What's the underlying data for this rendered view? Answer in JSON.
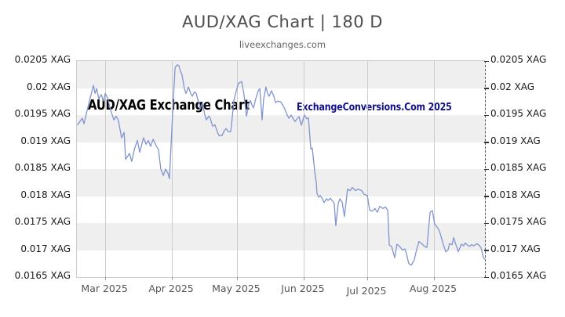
{
  "header": {
    "title": "AUD/XAG Chart | 180 D",
    "subtitle": "liveexchanges.com"
  },
  "watermarks": {
    "left_text": "AUD/XAG Exchange Chart",
    "left_color": "#000000",
    "right_text": "ExchangeConversions.Com 2025",
    "right_color": "#10108a"
  },
  "chart_data": {
    "type": "line",
    "title": "AUD/XAG Chart | 180 D",
    "pair": "AUD/XAG",
    "period": "180 D",
    "ylim": [
      0.0165,
      0.0205
    ],
    "xlim_days": [
      0,
      180
    ],
    "grid": "vertical-month-lines with alternating horizontal bands",
    "legend_position": "none",
    "band_colors": [
      "#efefef",
      "#ffffff"
    ],
    "line_color": "#8094d0",
    "grid_color": "#cccccc",
    "axis_dash_color": "#555555",
    "y_ticks": [
      {
        "value": 0.0205,
        "label": "0.0205 XAG"
      },
      {
        "value": 0.02,
        "label": "0.02 XAG"
      },
      {
        "value": 0.0195,
        "label": "0.0195 XAG"
      },
      {
        "value": 0.019,
        "label": "0.019 XAG"
      },
      {
        "value": 0.0185,
        "label": "0.0185 XAG"
      },
      {
        "value": 0.018,
        "label": "0.018 XAG"
      },
      {
        "value": 0.0175,
        "label": "0.0175 XAG"
      },
      {
        "value": 0.017,
        "label": "0.017 XAG"
      },
      {
        "value": 0.0165,
        "label": "0.0165 XAG"
      }
    ],
    "x_months": [
      {
        "label": "Mar 2025",
        "day": 12.5,
        "dy": 0
      },
      {
        "label": "Apr 2025",
        "day": 41.9,
        "dy": 0
      },
      {
        "label": "May 2025",
        "day": 70.6,
        "dy": 0
      },
      {
        "label": "Jun 2025",
        "day": 100.0,
        "dy": 0
      },
      {
        "label": "Jul 2025",
        "day": 128.1,
        "dy": 3
      },
      {
        "label": "Aug 2025",
        "day": 157.5,
        "dy": 0
      }
    ],
    "series": [
      {
        "name": "AUD/XAG",
        "points": [
          [
            0.3,
            0.01932
          ],
          [
            2.4,
            0.01944
          ],
          [
            3.1,
            0.01934
          ],
          [
            5.5,
            0.01976
          ],
          [
            7.3,
            0.02005
          ],
          [
            8.0,
            0.0199
          ],
          [
            8.7,
            0.01999
          ],
          [
            9.7,
            0.0198
          ],
          [
            10.7,
            0.01988
          ],
          [
            11.8,
            0.01976
          ],
          [
            12.5,
            0.0199
          ],
          [
            13.5,
            0.01982
          ],
          [
            14.9,
            0.01959
          ],
          [
            16.3,
            0.01941
          ],
          [
            17.3,
            0.01948
          ],
          [
            18.3,
            0.0194
          ],
          [
            19.7,
            0.01908
          ],
          [
            20.8,
            0.01918
          ],
          [
            21.5,
            0.01868
          ],
          [
            23.2,
            0.01879
          ],
          [
            24.2,
            0.01864
          ],
          [
            25.3,
            0.01886
          ],
          [
            26.7,
            0.01903
          ],
          [
            27.7,
            0.01881
          ],
          [
            29.4,
            0.01908
          ],
          [
            30.5,
            0.01896
          ],
          [
            31.5,
            0.01903
          ],
          [
            32.5,
            0.01892
          ],
          [
            33.6,
            0.01905
          ],
          [
            35.0,
            0.01893
          ],
          [
            36.0,
            0.01886
          ],
          [
            37.0,
            0.0185
          ],
          [
            38.1,
            0.01838
          ],
          [
            39.1,
            0.0185
          ],
          [
            40.2,
            0.01842
          ],
          [
            40.8,
            0.01832
          ],
          [
            42.2,
            0.0195
          ],
          [
            43.3,
            0.02038
          ],
          [
            44.3,
            0.02043
          ],
          [
            45.0,
            0.02041
          ],
          [
            45.7,
            0.02031
          ],
          [
            46.4,
            0.02024
          ],
          [
            47.4,
            0.01999
          ],
          [
            48.1,
            0.0199
          ],
          [
            49.2,
            0.02002
          ],
          [
            50.2,
            0.0199
          ],
          [
            50.9,
            0.01985
          ],
          [
            51.9,
            0.01993
          ],
          [
            52.6,
            0.0199
          ],
          [
            53.7,
            0.01973
          ],
          [
            54.3,
            0.01961
          ],
          [
            55.4,
            0.01973
          ],
          [
            56.4,
            0.01951
          ],
          [
            57.1,
            0.01941
          ],
          [
            58.2,
            0.01948
          ],
          [
            58.8,
            0.01944
          ],
          [
            59.9,
            0.01929
          ],
          [
            60.9,
            0.01932
          ],
          [
            62.0,
            0.01918
          ],
          [
            62.7,
            0.01912
          ],
          [
            64.0,
            0.01912
          ],
          [
            65.1,
            0.01922
          ],
          [
            65.8,
            0.01925
          ],
          [
            66.8,
            0.01919
          ],
          [
            67.8,
            0.01919
          ],
          [
            68.5,
            0.01944
          ],
          [
            69.2,
            0.01976
          ],
          [
            70.3,
            0.01995
          ],
          [
            71.3,
            0.02009
          ],
          [
            72.7,
            0.02012
          ],
          [
            73.7,
            0.01988
          ],
          [
            74.8,
            0.01948
          ],
          [
            75.8,
            0.0197
          ],
          [
            76.5,
            0.01977
          ],
          [
            77.2,
            0.01969
          ],
          [
            77.9,
            0.01963
          ],
          [
            78.9,
            0.0198
          ],
          [
            80.0,
            0.01995
          ],
          [
            80.7,
            0.01999
          ],
          [
            81.7,
            0.01941
          ],
          [
            82.4,
            0.0198
          ],
          [
            83.4,
            0.02002
          ],
          [
            84.1,
            0.0199
          ],
          [
            84.8,
            0.01985
          ],
          [
            85.8,
            0.01995
          ],
          [
            86.9,
            0.01985
          ],
          [
            87.6,
            0.01973
          ],
          [
            88.6,
            0.01976
          ],
          [
            90.0,
            0.01974
          ],
          [
            91.0,
            0.01967
          ],
          [
            91.7,
            0.01961
          ],
          [
            92.8,
            0.0195
          ],
          [
            93.5,
            0.01944
          ],
          [
            94.5,
            0.0195
          ],
          [
            95.2,
            0.01945
          ],
          [
            96.2,
            0.01938
          ],
          [
            97.3,
            0.01944
          ],
          [
            98.0,
            0.01947
          ],
          [
            99.0,
            0.01931
          ],
          [
            100.4,
            0.0195
          ],
          [
            101.4,
            0.01943
          ],
          [
            102.1,
            0.01945
          ],
          [
            103.2,
            0.01887
          ],
          [
            103.8,
            0.01889
          ],
          [
            104.2,
            0.01875
          ],
          [
            104.9,
            0.01846
          ],
          [
            105.6,
            0.01824
          ],
          [
            105.9,
            0.01805
          ],
          [
            106.6,
            0.01798
          ],
          [
            107.3,
            0.01801
          ],
          [
            108.3,
            0.01795
          ],
          [
            109.0,
            0.01788
          ],
          [
            110.1,
            0.01795
          ],
          [
            110.8,
            0.01792
          ],
          [
            111.8,
            0.01796
          ],
          [
            112.5,
            0.01792
          ],
          [
            113.5,
            0.01787
          ],
          [
            114.2,
            0.01745
          ],
          [
            115.3,
            0.01787
          ],
          [
            116.0,
            0.01795
          ],
          [
            117.0,
            0.01789
          ],
          [
            118.0,
            0.01762
          ],
          [
            119.4,
            0.01813
          ],
          [
            120.5,
            0.0181
          ],
          [
            121.5,
            0.01816
          ],
          [
            122.9,
            0.0181
          ],
          [
            123.9,
            0.01813
          ],
          [
            125.7,
            0.0181
          ],
          [
            126.7,
            0.01803
          ],
          [
            128.1,
            0.01801
          ],
          [
            129.1,
            0.01774
          ],
          [
            130.2,
            0.01772
          ],
          [
            131.5,
            0.01777
          ],
          [
            132.5,
            0.0177
          ],
          [
            133.6,
            0.01781
          ],
          [
            135.0,
            0.01777
          ],
          [
            136.0,
            0.0178
          ],
          [
            137.1,
            0.01774
          ],
          [
            137.8,
            0.01709
          ],
          [
            138.8,
            0.01707
          ],
          [
            140.2,
            0.01686
          ],
          [
            141.2,
            0.01711
          ],
          [
            142.3,
            0.01707
          ],
          [
            143.6,
            0.017
          ],
          [
            144.7,
            0.01702
          ],
          [
            145.4,
            0.01693
          ],
          [
            146.4,
            0.01675
          ],
          [
            147.5,
            0.01672
          ],
          [
            148.8,
            0.01682
          ],
          [
            149.9,
            0.01701
          ],
          [
            150.9,
            0.01716
          ],
          [
            152.3,
            0.01711
          ],
          [
            153.3,
            0.01707
          ],
          [
            154.4,
            0.01705
          ],
          [
            155.8,
            0.0177
          ],
          [
            156.8,
            0.01773
          ],
          [
            157.8,
            0.01748
          ],
          [
            158.5,
            0.01745
          ],
          [
            159.6,
            0.01738
          ],
          [
            160.3,
            0.0173
          ],
          [
            161.3,
            0.01715
          ],
          [
            162.7,
            0.01697
          ],
          [
            163.7,
            0.017
          ],
          [
            164.4,
            0.01712
          ],
          [
            165.5,
            0.0171
          ],
          [
            166.2,
            0.01723
          ],
          [
            167.2,
            0.0171
          ],
          [
            168.2,
            0.01697
          ],
          [
            169.6,
            0.01711
          ],
          [
            170.6,
            0.01708
          ],
          [
            171.3,
            0.01713
          ],
          [
            172.4,
            0.01709
          ],
          [
            173.4,
            0.01707
          ],
          [
            174.1,
            0.0171
          ],
          [
            175.1,
            0.01708
          ],
          [
            176.5,
            0.01712
          ],
          [
            177.6,
            0.01708
          ],
          [
            178.3,
            0.01704
          ],
          [
            179.3,
            0.01686
          ],
          [
            180.0,
            0.01683
          ]
        ]
      }
    ]
  }
}
